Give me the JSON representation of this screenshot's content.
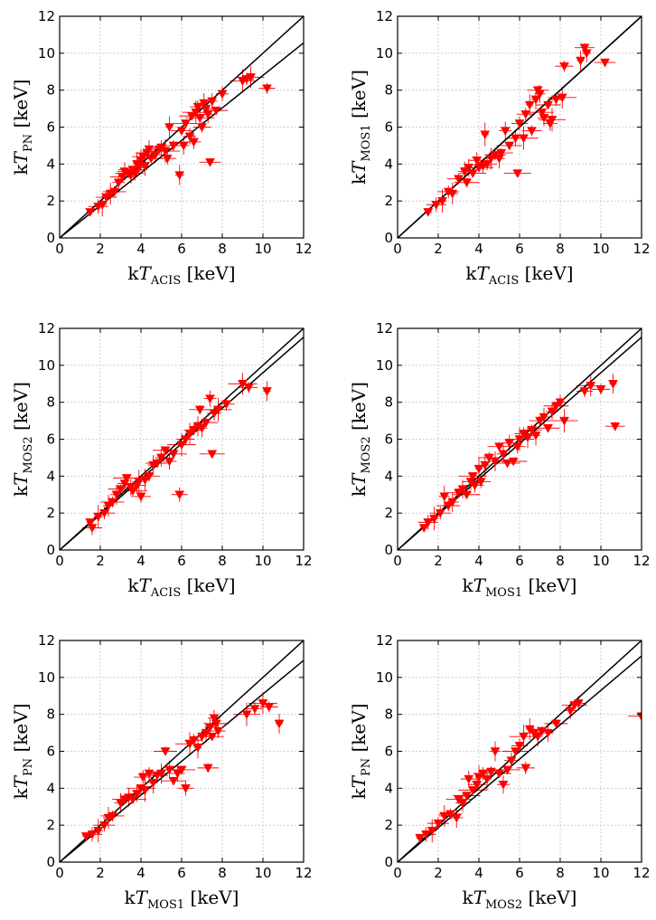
{
  "chart_data": [
    {
      "type": "scatter",
      "id": "pn-vs-acis",
      "xlabel": {
        "prefix": "k",
        "var": "T",
        "sub": "ACIS",
        "unit": " [keV]"
      },
      "ylabel": {
        "prefix": "k",
        "var": "T",
        "sub": "PN",
        "unit": " [keV]"
      },
      "xlim": [
        0,
        12
      ],
      "ylim": [
        0,
        12
      ],
      "xticks": [
        "0",
        "2",
        "4",
        "6",
        "8",
        "10",
        "12"
      ],
      "yticks": [
        "0",
        "2",
        "4",
        "6",
        "8",
        "10",
        "12"
      ],
      "grid": true,
      "fit_line": {
        "slope": 0.88,
        "intercept": 0
      },
      "points": [
        [
          1.5,
          1.4
        ],
        [
          1.9,
          1.7
        ],
        [
          2.1,
          1.8
        ],
        [
          2.3,
          2.2
        ],
        [
          2.5,
          2.4
        ],
        [
          2.7,
          2.5
        ],
        [
          2.9,
          3.0
        ],
        [
          3.1,
          3.3
        ],
        [
          3.2,
          3.6
        ],
        [
          3.4,
          3.5
        ],
        [
          3.5,
          3.4
        ],
        [
          3.6,
          3.7
        ],
        [
          3.7,
          3.5
        ],
        [
          3.8,
          4.0
        ],
        [
          3.9,
          3.8
        ],
        [
          4.0,
          4.2
        ],
        [
          4.1,
          4.4
        ],
        [
          4.2,
          3.9
        ],
        [
          4.3,
          4.6
        ],
        [
          4.4,
          4.8
        ],
        [
          4.5,
          4.3
        ],
        [
          4.7,
          4.5
        ],
        [
          4.9,
          4.8
        ],
        [
          5.0,
          4.9
        ],
        [
          5.2,
          4.7
        ],
        [
          5.3,
          4.3
        ],
        [
          5.4,
          6.0
        ],
        [
          5.6,
          5.0
        ],
        [
          5.9,
          3.4
        ],
        [
          6.0,
          5.8
        ],
        [
          6.1,
          5.0
        ],
        [
          6.2,
          6.2
        ],
        [
          6.4,
          5.5
        ],
        [
          6.5,
          6.6
        ],
        [
          6.6,
          5.2
        ],
        [
          6.7,
          6.8
        ],
        [
          6.8,
          7.1
        ],
        [
          6.9,
          6.5
        ],
        [
          7.0,
          6.0
        ],
        [
          7.1,
          7.3
        ],
        [
          7.2,
          7.0
        ],
        [
          7.3,
          6.7
        ],
        [
          7.4,
          4.1
        ],
        [
          7.5,
          7.4
        ],
        [
          7.7,
          6.9
        ],
        [
          8.0,
          7.8
        ],
        [
          9.0,
          8.5
        ],
        [
          9.2,
          8.6
        ],
        [
          9.4,
          8.7
        ],
        [
          10.2,
          8.1
        ]
      ]
    },
    {
      "type": "scatter",
      "id": "mos1-vs-acis",
      "xlabel": {
        "prefix": "k",
        "var": "T",
        "sub": "ACIS",
        "unit": " [keV]"
      },
      "ylabel": {
        "prefix": "k",
        "var": "T",
        "sub": "MOS1",
        "unit": " [keV]"
      },
      "xlim": [
        0,
        12
      ],
      "ylim": [
        0,
        12
      ],
      "xticks": [
        "0",
        "2",
        "4",
        "6",
        "8",
        "10",
        "12"
      ],
      "yticks": [
        "0",
        "2",
        "4",
        "6",
        "8",
        "10",
        "12"
      ],
      "grid": true,
      "fit_line": {
        "slope": 1.0,
        "intercept": 0
      },
      "points": [
        [
          1.5,
          1.4
        ],
        [
          1.9,
          1.8
        ],
        [
          2.2,
          2.0
        ],
        [
          2.5,
          2.5
        ],
        [
          2.7,
          2.4
        ],
        [
          3.0,
          3.2
        ],
        [
          3.3,
          3.6
        ],
        [
          3.4,
          3.0
        ],
        [
          3.5,
          3.8
        ],
        [
          3.7,
          3.5
        ],
        [
          3.9,
          4.2
        ],
        [
          4.0,
          3.8
        ],
        [
          4.2,
          3.9
        ],
        [
          4.3,
          5.6
        ],
        [
          4.4,
          4.0
        ],
        [
          4.6,
          4.3
        ],
        [
          4.8,
          4.5
        ],
        [
          5.0,
          4.3
        ],
        [
          5.1,
          4.6
        ],
        [
          5.3,
          5.8
        ],
        [
          5.5,
          5.0
        ],
        [
          5.8,
          5.4
        ],
        [
          5.9,
          3.5
        ],
        [
          6.0,
          6.2
        ],
        [
          6.2,
          5.4
        ],
        [
          6.3,
          6.7
        ],
        [
          6.5,
          7.2
        ],
        [
          6.6,
          5.8
        ],
        [
          6.8,
          7.5
        ],
        [
          6.9,
          8.0
        ],
        [
          7.0,
          7.8
        ],
        [
          7.1,
          6.8
        ],
        [
          7.2,
          6.5
        ],
        [
          7.4,
          7.2
        ],
        [
          7.5,
          6.2
        ],
        [
          7.6,
          6.4
        ],
        [
          7.8,
          7.5
        ],
        [
          8.1,
          7.6
        ],
        [
          8.2,
          9.3
        ],
        [
          9.0,
          9.6
        ],
        [
          9.2,
          10.3
        ],
        [
          9.3,
          10.0
        ],
        [
          10.2,
          9.5
        ]
      ]
    },
    {
      "type": "scatter",
      "id": "mos2-vs-acis",
      "xlabel": {
        "prefix": "k",
        "var": "T",
        "sub": "ACIS",
        "unit": " [keV]"
      },
      "ylabel": {
        "prefix": "k",
        "var": "T",
        "sub": "MOS2",
        "unit": " [keV]"
      },
      "xlim": [
        0,
        12
      ],
      "ylim": [
        0,
        12
      ],
      "xticks": [
        "0",
        "2",
        "4",
        "6",
        "8",
        "10",
        "12"
      ],
      "yticks": [
        "0",
        "2",
        "4",
        "6",
        "8",
        "10",
        "12"
      ],
      "grid": true,
      "fit_line": {
        "slope": 0.96,
        "intercept": 0
      },
      "points": [
        [
          1.5,
          1.5
        ],
        [
          1.6,
          1.2
        ],
        [
          1.9,
          1.8
        ],
        [
          2.2,
          2.0
        ],
        [
          2.4,
          2.4
        ],
        [
          2.6,
          2.6
        ],
        [
          2.8,
          3.0
        ],
        [
          3.0,
          3.3
        ],
        [
          3.2,
          3.6
        ],
        [
          3.3,
          3.9
        ],
        [
          3.5,
          3.4
        ],
        [
          3.6,
          3.2
        ],
        [
          3.8,
          3.5
        ],
        [
          3.9,
          3.7
        ],
        [
          4.0,
          2.9
        ],
        [
          4.2,
          3.8
        ],
        [
          4.4,
          4.0
        ],
        [
          4.6,
          4.6
        ],
        [
          4.8,
          4.7
        ],
        [
          5.0,
          5.0
        ],
        [
          5.2,
          5.4
        ],
        [
          5.4,
          4.8
        ],
        [
          5.6,
          5.2
        ],
        [
          5.9,
          3.0
        ],
        [
          6.0,
          5.7
        ],
        [
          6.2,
          6.0
        ],
        [
          6.4,
          6.3
        ],
        [
          6.6,
          6.5
        ],
        [
          6.8,
          6.7
        ],
        [
          6.9,
          7.6
        ],
        [
          7.0,
          6.6
        ],
        [
          7.2,
          6.9
        ],
        [
          7.4,
          8.2
        ],
        [
          7.5,
          5.2
        ],
        [
          7.6,
          7.4
        ],
        [
          7.8,
          7.6
        ],
        [
          8.2,
          7.9
        ],
        [
          9.0,
          9.0
        ],
        [
          9.3,
          8.8
        ],
        [
          10.2,
          8.6
        ]
      ]
    },
    {
      "type": "scatter",
      "id": "mos2-vs-mos1",
      "xlabel": {
        "prefix": "k",
        "var": "T",
        "sub": "MOS1",
        "unit": " [keV]"
      },
      "ylabel": {
        "prefix": "k",
        "var": "T",
        "sub": "MOS2",
        "unit": " [keV]"
      },
      "xlim": [
        0,
        12
      ],
      "ylim": [
        0,
        12
      ],
      "xticks": [
        "0",
        "2",
        "4",
        "6",
        "8",
        "10",
        "12"
      ],
      "yticks": [
        "0",
        "2",
        "4",
        "6",
        "8",
        "10",
        "12"
      ],
      "grid": true,
      "fit_line": {
        "slope": 0.96,
        "intercept": 0
      },
      "points": [
        [
          1.3,
          1.2
        ],
        [
          1.5,
          1.5
        ],
        [
          1.8,
          1.7
        ],
        [
          2.1,
          2.0
        ],
        [
          2.3,
          2.9
        ],
        [
          2.5,
          2.4
        ],
        [
          2.7,
          2.6
        ],
        [
          3.0,
          3.1
        ],
        [
          3.2,
          3.3
        ],
        [
          3.4,
          3.0
        ],
        [
          3.6,
          3.7
        ],
        [
          3.7,
          4.0
        ],
        [
          3.8,
          3.5
        ],
        [
          4.0,
          4.4
        ],
        [
          4.1,
          3.7
        ],
        [
          4.3,
          4.6
        ],
        [
          4.5,
          5.0
        ],
        [
          4.8,
          4.8
        ],
        [
          5.0,
          5.6
        ],
        [
          5.2,
          5.2
        ],
        [
          5.4,
          4.7
        ],
        [
          5.5,
          5.8
        ],
        [
          5.7,
          4.8
        ],
        [
          5.9,
          5.6
        ],
        [
          6.0,
          6.0
        ],
        [
          6.2,
          6.3
        ],
        [
          6.4,
          6.1
        ],
        [
          6.6,
          6.5
        ],
        [
          6.8,
          6.2
        ],
        [
          7.0,
          7.0
        ],
        [
          7.2,
          7.2
        ],
        [
          7.4,
          6.6
        ],
        [
          7.6,
          7.5
        ],
        [
          7.8,
          7.8
        ],
        [
          8.0,
          8.0
        ],
        [
          8.2,
          7.0
        ],
        [
          9.2,
          8.6
        ],
        [
          9.5,
          8.9
        ],
        [
          10.0,
          8.7
        ],
        [
          10.6,
          9.0
        ],
        [
          10.7,
          6.7
        ]
      ]
    },
    {
      "type": "scatter",
      "id": "pn-vs-mos1",
      "xlabel": {
        "prefix": "k",
        "var": "T",
        "sub": "MOS1",
        "unit": " [keV]"
      },
      "ylabel": {
        "prefix": "k",
        "var": "T",
        "sub": "PN",
        "unit": " [keV]"
      },
      "xlim": [
        0,
        12
      ],
      "ylim": [
        0,
        12
      ],
      "xticks": [
        "0",
        "2",
        "4",
        "6",
        "8",
        "10",
        "12"
      ],
      "yticks": [
        "0",
        "2",
        "4",
        "6",
        "8",
        "10",
        "12"
      ],
      "grid": true,
      "fit_line": {
        "slope": 0.91,
        "intercept": 0
      },
      "points": [
        [
          1.3,
          1.4
        ],
        [
          1.6,
          1.5
        ],
        [
          1.9,
          1.7
        ],
        [
          2.2,
          2.0
        ],
        [
          2.4,
          2.4
        ],
        [
          2.6,
          2.5
        ],
        [
          3.0,
          3.2
        ],
        [
          3.2,
          3.4
        ],
        [
          3.4,
          3.5
        ],
        [
          3.6,
          3.4
        ],
        [
          3.8,
          3.7
        ],
        [
          4.0,
          4.0
        ],
        [
          4.1,
          4.6
        ],
        [
          4.2,
          3.9
        ],
        [
          4.4,
          4.8
        ],
        [
          4.6,
          4.3
        ],
        [
          4.8,
          4.7
        ],
        [
          5.0,
          4.8
        ],
        [
          5.2,
          6.0
        ],
        [
          5.4,
          5.0
        ],
        [
          5.6,
          4.4
        ],
        [
          5.8,
          4.8
        ],
        [
          6.0,
          5.0
        ],
        [
          6.2,
          4.0
        ],
        [
          6.4,
          6.4
        ],
        [
          6.6,
          6.6
        ],
        [
          6.8,
          6.2
        ],
        [
          7.0,
          6.8
        ],
        [
          7.2,
          7.0
        ],
        [
          7.3,
          5.1
        ],
        [
          7.4,
          7.3
        ],
        [
          7.5,
          6.8
        ],
        [
          7.6,
          7.8
        ],
        [
          7.7,
          7.5
        ],
        [
          7.8,
          7.1
        ],
        [
          9.2,
          8.0
        ],
        [
          9.6,
          8.3
        ],
        [
          10.0,
          8.6
        ],
        [
          10.3,
          8.4
        ],
        [
          10.8,
          7.5
        ]
      ]
    },
    {
      "type": "scatter",
      "id": "pn-vs-mos2",
      "xlabel": {
        "prefix": "k",
        "var": "T",
        "sub": "MOS2",
        "unit": " [keV]"
      },
      "ylabel": {
        "prefix": "k",
        "var": "T",
        "sub": "PN",
        "unit": " [keV]"
      },
      "xlim": [
        0,
        12
      ],
      "ylim": [
        0,
        12
      ],
      "xticks": [
        "0",
        "2",
        "4",
        "6",
        "8",
        "10",
        "12"
      ],
      "yticks": [
        "0",
        "2",
        "4",
        "6",
        "8",
        "10",
        "12"
      ],
      "grid": true,
      "fit_line": {
        "slope": 0.93,
        "intercept": 0
      },
      "points": [
        [
          1.1,
          1.3
        ],
        [
          1.4,
          1.5
        ],
        [
          1.7,
          1.7
        ],
        [
          2.0,
          2.1
        ],
        [
          2.3,
          2.5
        ],
        [
          2.6,
          2.6
        ],
        [
          2.9,
          2.4
        ],
        [
          3.0,
          3.4
        ],
        [
          3.2,
          3.2
        ],
        [
          3.4,
          3.6
        ],
        [
          3.5,
          4.5
        ],
        [
          3.7,
          3.9
        ],
        [
          3.9,
          4.2
        ],
        [
          4.0,
          4.6
        ],
        [
          4.2,
          4.8
        ],
        [
          4.4,
          4.5
        ],
        [
          4.6,
          4.9
        ],
        [
          4.8,
          6.0
        ],
        [
          5.0,
          4.8
        ],
        [
          5.2,
          4.2
        ],
        [
          5.4,
          5.0
        ],
        [
          5.6,
          5.5
        ],
        [
          5.8,
          6.0
        ],
        [
          6.0,
          6.3
        ],
        [
          6.2,
          6.8
        ],
        [
          6.3,
          5.1
        ],
        [
          6.5,
          7.2
        ],
        [
          6.7,
          7.0
        ],
        [
          6.9,
          6.8
        ],
        [
          7.1,
          7.1
        ],
        [
          7.4,
          7.0
        ],
        [
          7.8,
          7.5
        ],
        [
          8.5,
          8.2
        ],
        [
          8.7,
          8.5
        ],
        [
          8.9,
          8.6
        ],
        [
          12.0,
          7.9
        ]
      ]
    }
  ]
}
